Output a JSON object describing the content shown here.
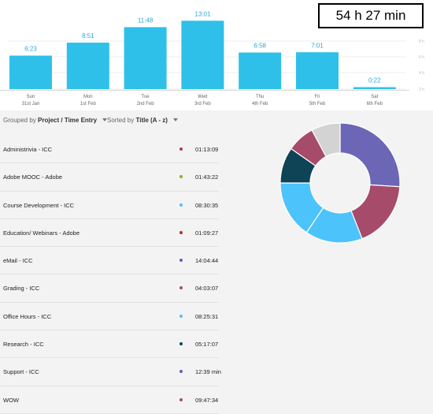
{
  "total_time": "54 h 27 min",
  "colors": {
    "bar": "#2ec0e8",
    "bar_label": "#2aa8d8"
  },
  "chart_data": {
    "type": "bar",
    "categories": [
      "Sun",
      "Mon",
      "Tue",
      "Wed",
      "Thu",
      "Fri",
      "Sat"
    ],
    "dates": [
      "31st Jan",
      "1st Feb",
      "2nd Feb",
      "3rd Feb",
      "4th Feb",
      "5th Feb",
      "6th Feb"
    ],
    "value_labels": [
      "6:23",
      "8:51",
      "11:48",
      "13:01",
      "6:58",
      "7:01",
      "0:22"
    ],
    "values": [
      6.38,
      8.85,
      11.8,
      13.02,
      6.97,
      7.02,
      0.37
    ],
    "y_ticks": [
      "8 h",
      "6 h",
      "4 h",
      "2 h"
    ],
    "ylim": [
      0,
      15
    ]
  },
  "controls": {
    "grouped_prefix": "Grouped by",
    "grouped_value": "Project / Time Entry",
    "sorted_prefix": "Sorted by",
    "sorted_value": "Title (A - z)"
  },
  "entries": [
    {
      "name": "Administrivia - ICC",
      "time": "01:13:09",
      "color": "#b23a4c"
    },
    {
      "name": "Adobe MOOC - Adobe",
      "time": "01:43:22",
      "color": "#9aa82a"
    },
    {
      "name": "Course Development - ICC",
      "time": "08:30:35",
      "color": "#4ec3f5"
    },
    {
      "name": "Education/ Webinars - Adobe",
      "time": "01:09:27",
      "color": "#b32e2e"
    },
    {
      "name": "eMail - ICC",
      "time": "14:04:44",
      "color": "#6a5cb5"
    },
    {
      "name": "Grading - ICC",
      "time": "04:03:07",
      "color": "#a84a6a"
    },
    {
      "name": "Office Hours - ICC",
      "time": "08:25:31",
      "color": "#4ec3f5"
    },
    {
      "name": "Research - ICC",
      "time": "05:17:07",
      "color": "#0e4a5e"
    },
    {
      "name": "Support - ICC",
      "time": "12:39 min",
      "color": "#6a5cb5"
    },
    {
      "name": "WOW",
      "time": "09:47:34",
      "color": "#a84a6a"
    }
  ],
  "donut": [
    {
      "value": 26.0,
      "color": "#6b66b6"
    },
    {
      "value": 18.0,
      "color": "#a64b69"
    },
    {
      "value": 15.5,
      "color": "#4dc3fb"
    },
    {
      "value": 15.5,
      "color": "#4dc3fb"
    },
    {
      "value": 9.7,
      "color": "#0f4457"
    },
    {
      "value": 7.5,
      "color": "#a64b69"
    },
    {
      "value": 7.8,
      "color": "#d3d3d3"
    }
  ]
}
